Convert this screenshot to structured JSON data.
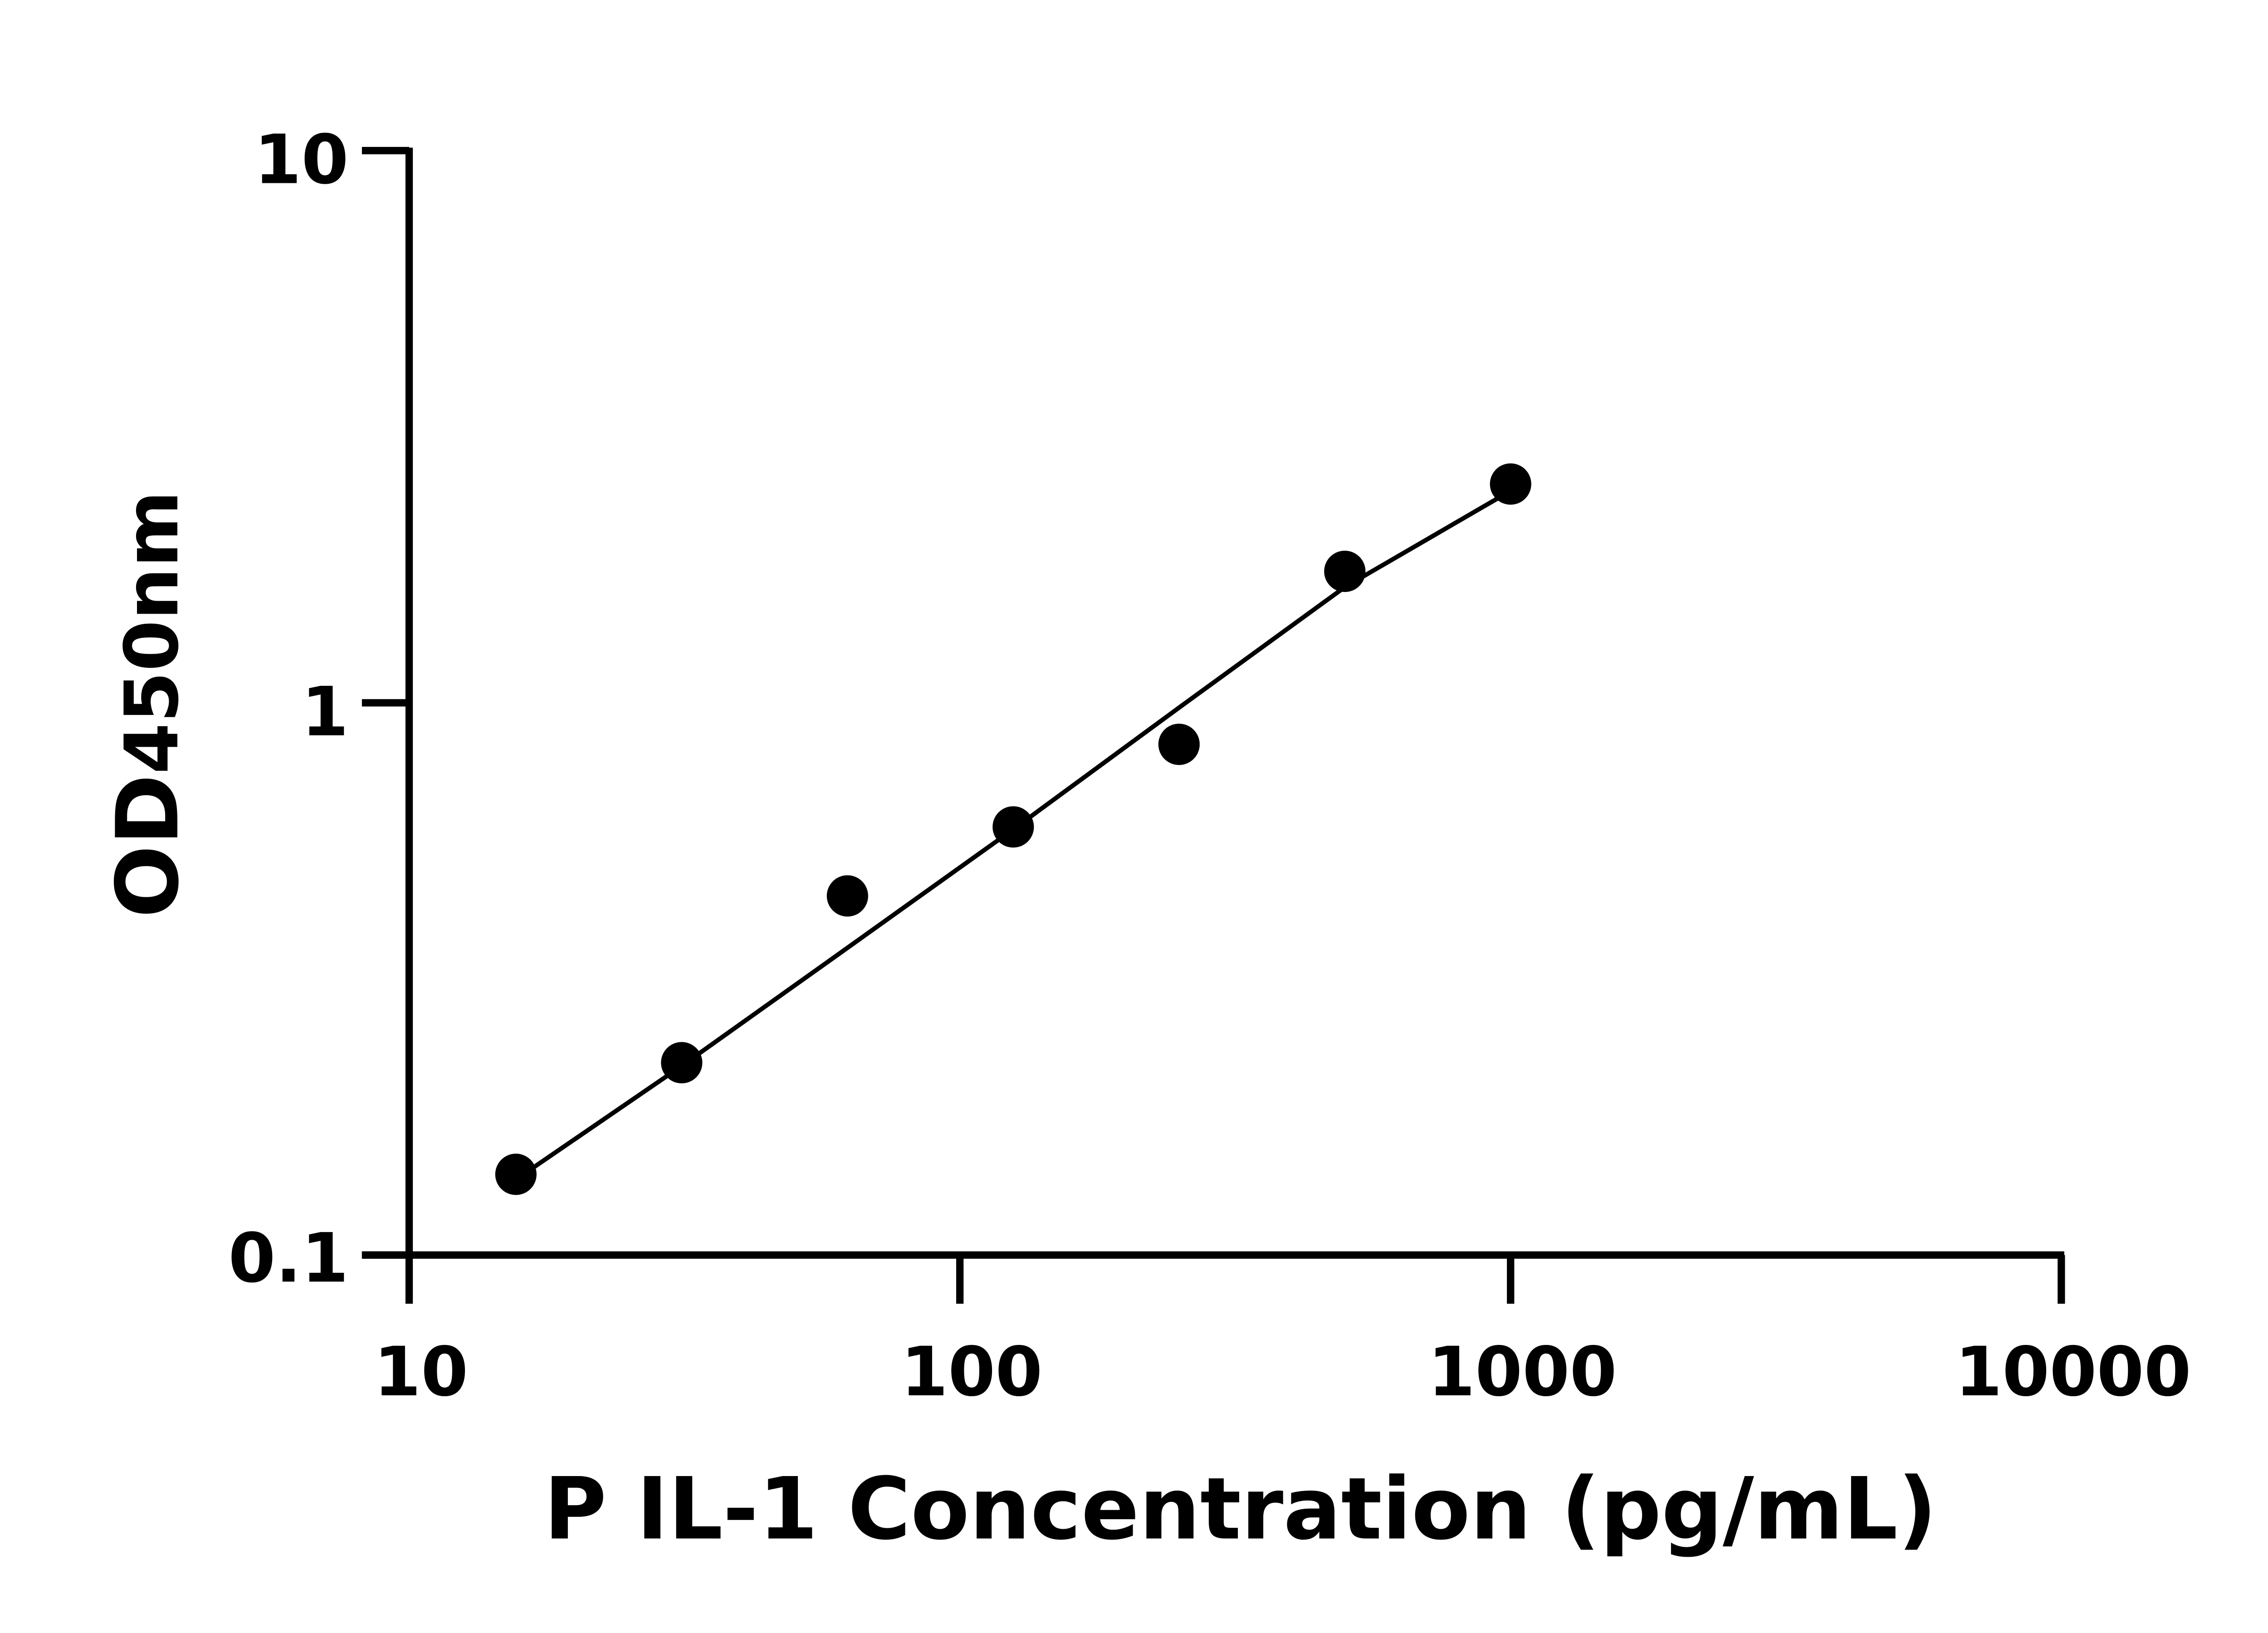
{
  "chart_data": {
    "type": "scatter",
    "title": "",
    "xlabel": "P IL-1 Concentration (pg/mL)",
    "ylabel_main": "OD",
    "ylabel_sub": "450nm",
    "x_scale": "log",
    "y_scale": "log",
    "xlim": [
      10,
      10000
    ],
    "ylim": [
      0.1,
      10
    ],
    "x_ticks": [
      10,
      100,
      1000,
      10000
    ],
    "x_tick_labels": [
      "10",
      "100",
      "1000",
      "10000"
    ],
    "y_ticks": [
      0.1,
      1,
      10
    ],
    "y_tick_labels": [
      "0.1",
      "1",
      "10"
    ],
    "grid": false,
    "points": {
      "x": [
        15.625,
        31.25,
        62.5,
        125,
        250,
        500,
        1000
      ],
      "y": [
        0.14,
        0.223,
        0.447,
        0.596,
        0.841,
        1.73,
        2.49
      ]
    },
    "fit_curve": {
      "x": [
        15.625,
        31.25,
        62.5,
        125,
        250,
        500,
        1000
      ],
      "y": [
        0.137,
        0.22,
        0.36,
        0.59,
        0.98,
        1.62,
        2.42
      ]
    },
    "colors": {
      "marks": "#000000",
      "background": "#ffffff"
    }
  }
}
